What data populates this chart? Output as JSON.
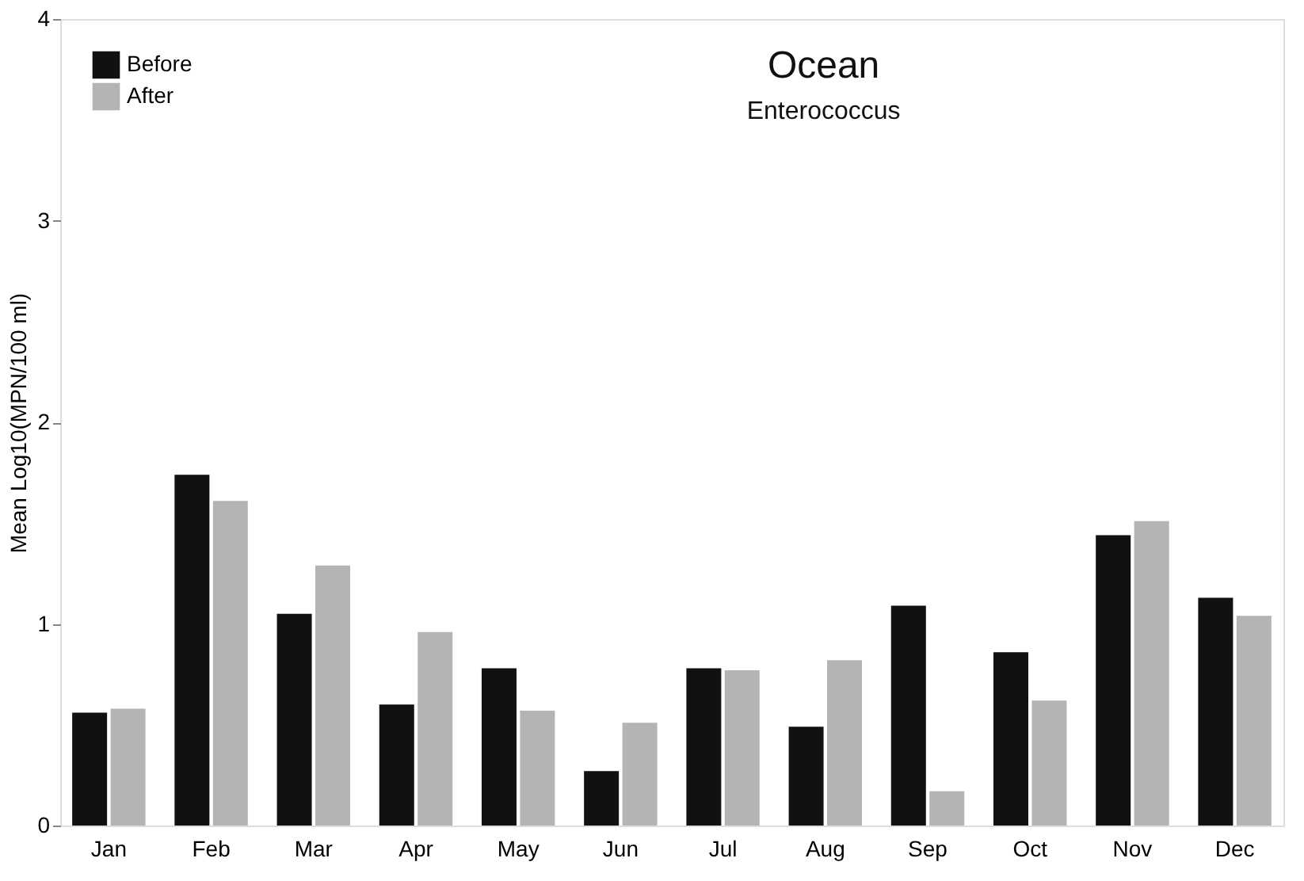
{
  "chart_data": {
    "type": "bar",
    "title": "Ocean",
    "subtitle": "Enterococcus",
    "ylabel": "Mean Log10(MPN/100 ml)",
    "categories": [
      "Jan",
      "Feb",
      "Mar",
      "Apr",
      "May",
      "Jun",
      "Jul",
      "Aug",
      "Sep",
      "Oct",
      "Nov",
      "Dec"
    ],
    "series": [
      {
        "name": "Before",
        "color": "#111111",
        "values": [
          0.56,
          1.74,
          1.05,
          0.6,
          0.78,
          0.27,
          0.78,
          0.49,
          1.09,
          0.86,
          1.44,
          1.13
        ]
      },
      {
        "name": "After",
        "color": "#b4b4b4",
        "values": [
          0.58,
          1.61,
          1.29,
          0.96,
          0.57,
          0.51,
          0.77,
          0.82,
          0.17,
          0.62,
          1.51,
          1.04
        ]
      }
    ],
    "ylim": [
      0,
      4
    ],
    "yticks": [
      0,
      1,
      2,
      3,
      4
    ],
    "grid": false,
    "legend": "top left"
  }
}
